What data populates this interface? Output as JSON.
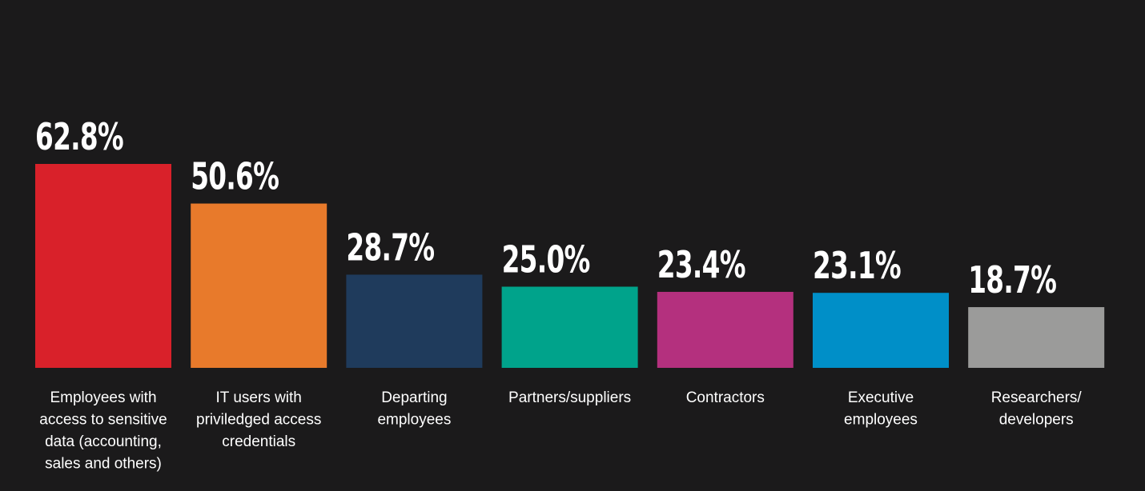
{
  "chart_data": {
    "type": "bar",
    "title": "",
    "xlabel": "",
    "ylabel": "",
    "ylim": [
      0,
      62.8
    ],
    "grid": false,
    "legend": "none",
    "value_suffix": "%",
    "categories": [
      "Employees with access to sensitive data (accounting, sales and others)",
      "IT users with priviledged access credentials",
      "Departing employees",
      "Partners/suppliers",
      "Contractors",
      "Executive employees",
      "Researchers/ developers"
    ],
    "category_lines": [
      [
        "Employees with",
        "access to sensitive",
        "data (accounting,",
        "sales and others)"
      ],
      [
        "IT users with",
        "priviledged access",
        "credentials"
      ],
      [
        "Departing",
        "employees"
      ],
      [
        "Partners/suppliers"
      ],
      [
        "Contractors"
      ],
      [
        "Executive",
        "employees"
      ],
      [
        "Researchers/",
        "developers"
      ]
    ],
    "values": [
      62.8,
      50.6,
      28.7,
      25.0,
      23.4,
      23.1,
      18.7
    ],
    "value_labels": [
      "62.8%",
      "50.6%",
      "28.7%",
      "25.0%",
      "23.4%",
      "23.1%",
      "18.7%"
    ],
    "colors": [
      "#d9212a",
      "#e87a2b",
      "#1f3b5c",
      "#00a38b",
      "#b4307e",
      "#008fc8",
      "#9b9b9a"
    ]
  }
}
